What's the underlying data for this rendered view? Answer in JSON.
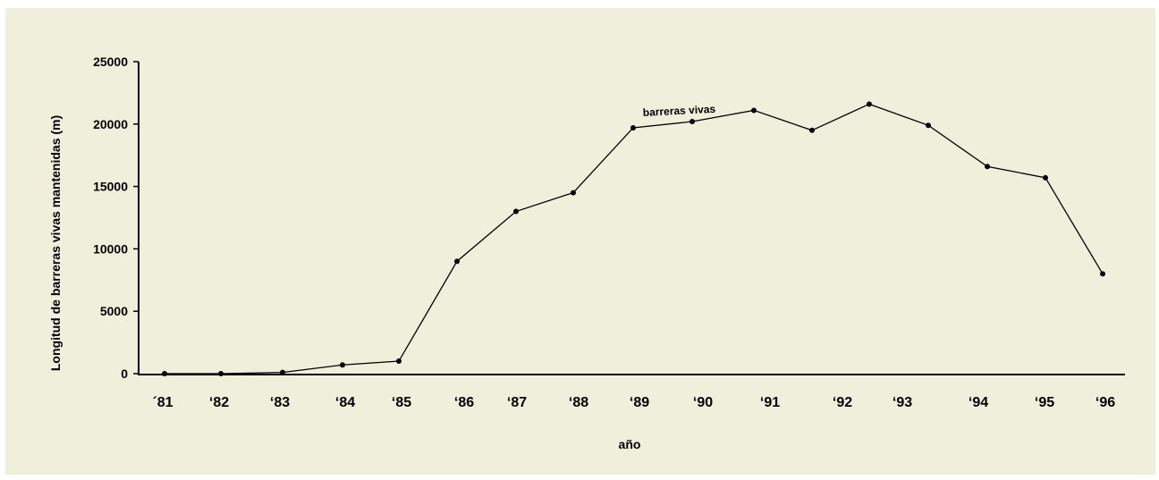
{
  "chart_data": {
    "type": "line",
    "categories": [
      "´81",
      "‘82",
      "‘83",
      "‘84",
      "‘85",
      "‘86",
      "‘87",
      "‘88",
      "‘89",
      "‘90",
      "‘91",
      "‘92",
      "‘93",
      "‘94",
      "‘95",
      "‘96"
    ],
    "points": [
      {
        "x": 1981.0,
        "y": 0
      },
      {
        "x": 1982.0,
        "y": 0
      },
      {
        "x": 1983.0,
        "y": 100
      },
      {
        "x": 1984.0,
        "y": 700
      },
      {
        "x": 1985.0,
        "y": 1000
      },
      {
        "x": 1986.0,
        "y": 9000
      },
      {
        "x": 1987.0,
        "y": 13000
      },
      {
        "x": 1988.0,
        "y": 14500
      },
      {
        "x": 1989.0,
        "y": 19700
      },
      {
        "x": 1990.0,
        "y": 20200
      },
      {
        "x": 1991.0,
        "y": 21100
      },
      {
        "x": 1992.0,
        "y": 19500
      },
      {
        "x": 1993.0,
        "y": 21600
      },
      {
        "x": 1994.0,
        "y": 19900
      },
      {
        "x": 1995.0,
        "y": 16600
      },
      {
        "x": 1996.0,
        "y": 15700
      },
      {
        "x": 1997.0,
        "y": 8000
      }
    ],
    "series": [
      {
        "name": "barreras vivas"
      }
    ],
    "y_ticks": [
      0,
      5000,
      10000,
      15000,
      20000,
      25000
    ],
    "ylim": [
      0,
      25000
    ],
    "xlabel": "año",
    "ylabel": "Longitud de barreras vivas mantenidas (m)",
    "grid": false,
    "colors": {
      "background": "#f0efdc",
      "line": "#000000",
      "marker": "#000000"
    }
  }
}
